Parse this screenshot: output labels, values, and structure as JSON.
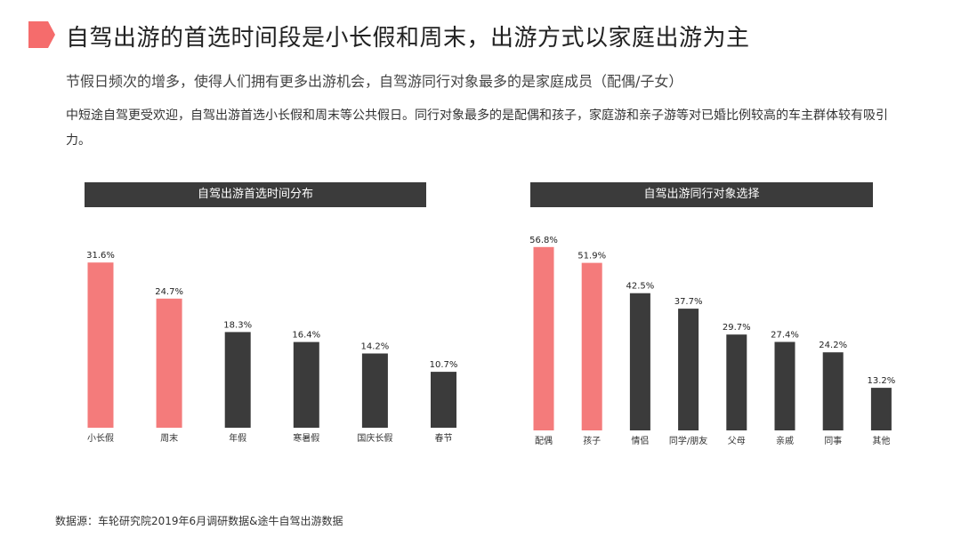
{
  "page": {
    "title": "自驾出游的首选时间段是小长假和周末，出游方式以家庭出游为主",
    "subtitle": "节假日频次的增多，使得人们拥有更多出游机会，自驾游同行对象最多的是家庭成员（配偶/子女）",
    "body": "中短途自驾更受欢迎，自驾出游首选小长假和周末等公共假日。同行对象最多的是配偶和孩子，家庭游和亲子游等对已婚比例较高的车主群体较有吸引力。",
    "source": "数据源：车轮研究院2019年6月调研数据&途牛自驾出游数据",
    "accent_color": "#f56c6c",
    "highlight_bar_color": "#f47b7b",
    "dark_bar_color": "#3b3b3b",
    "header_bg_color": "#3b3b3b"
  },
  "chart_data": [
    {
      "type": "bar",
      "title": "自驾出游首选时间分布",
      "categories": [
        "小长假",
        "周末",
        "年假",
        "寒暑假",
        "国庆长假",
        "春节"
      ],
      "values": [
        31.6,
        24.7,
        18.3,
        16.4,
        14.2,
        10.7
      ],
      "value_labels": [
        "31.6%",
        "24.7%",
        "18.3%",
        "16.4%",
        "14.2%",
        "10.7%"
      ],
      "highlighted": [
        0,
        1
      ],
      "unit": "%",
      "grid": false,
      "legend": "none"
    },
    {
      "type": "bar",
      "title": "自驾出游同行对象选择",
      "categories": [
        "配偶",
        "孩子",
        "情侣",
        "同学/朋友",
        "父母",
        "亲戚",
        "同事",
        "其他"
      ],
      "values": [
        56.8,
        51.9,
        42.5,
        37.7,
        29.7,
        27.4,
        24.2,
        13.2
      ],
      "value_labels": [
        "56.8%",
        "51.9%",
        "42.5%",
        "37.7%",
        "29.7%",
        "27.4%",
        "24.2%",
        "13.2%"
      ],
      "highlighted": [
        0,
        1
      ],
      "unit": "%",
      "grid": false,
      "legend": "none"
    }
  ]
}
